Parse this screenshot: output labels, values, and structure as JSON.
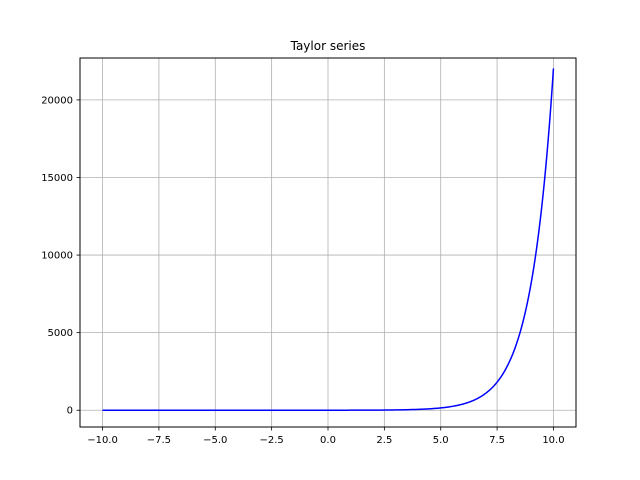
{
  "chart_data": {
    "type": "line",
    "title": "Taylor series",
    "xlabel": "",
    "ylabel": "",
    "xlim": [
      -11.0,
      11.0
    ],
    "ylim": [
      -1081,
      22700
    ],
    "grid": true,
    "line_color": "#0000ff",
    "grid_color": "#b0b0b0",
    "x_ticks": [
      -10.0,
      -7.5,
      -5.0,
      -2.5,
      0.0,
      2.5,
      5.0,
      7.5,
      10.0
    ],
    "x_tick_labels": [
      "−10.0",
      "−7.5",
      "−5.0",
      "−2.5",
      "0.0",
      "2.5",
      "5.0",
      "7.5",
      "10.0"
    ],
    "y_ticks": [
      0,
      5000,
      10000,
      15000,
      20000
    ],
    "y_tick_labels": [
      "0",
      "5000",
      "10000",
      "15000",
      "20000"
    ],
    "series": [
      {
        "x": [
          -10,
          -9,
          -8,
          -7,
          -6,
          -5,
          -4,
          -3,
          -2,
          -1,
          0,
          1,
          2,
          3,
          4,
          5,
          5.5,
          6,
          6.5,
          7,
          7.5,
          8,
          8.5,
          9,
          9.25,
          9.5,
          9.75,
          10
        ],
        "y": [
          0,
          0,
          0,
          0,
          0,
          0,
          0,
          0,
          0,
          0,
          1,
          3,
          7,
          20,
          55,
          148,
          245,
          403,
          665,
          1097,
          1808,
          2981,
          4915,
          8103,
          10405,
          13360,
          17154,
          22026
        ]
      }
    ]
  }
}
